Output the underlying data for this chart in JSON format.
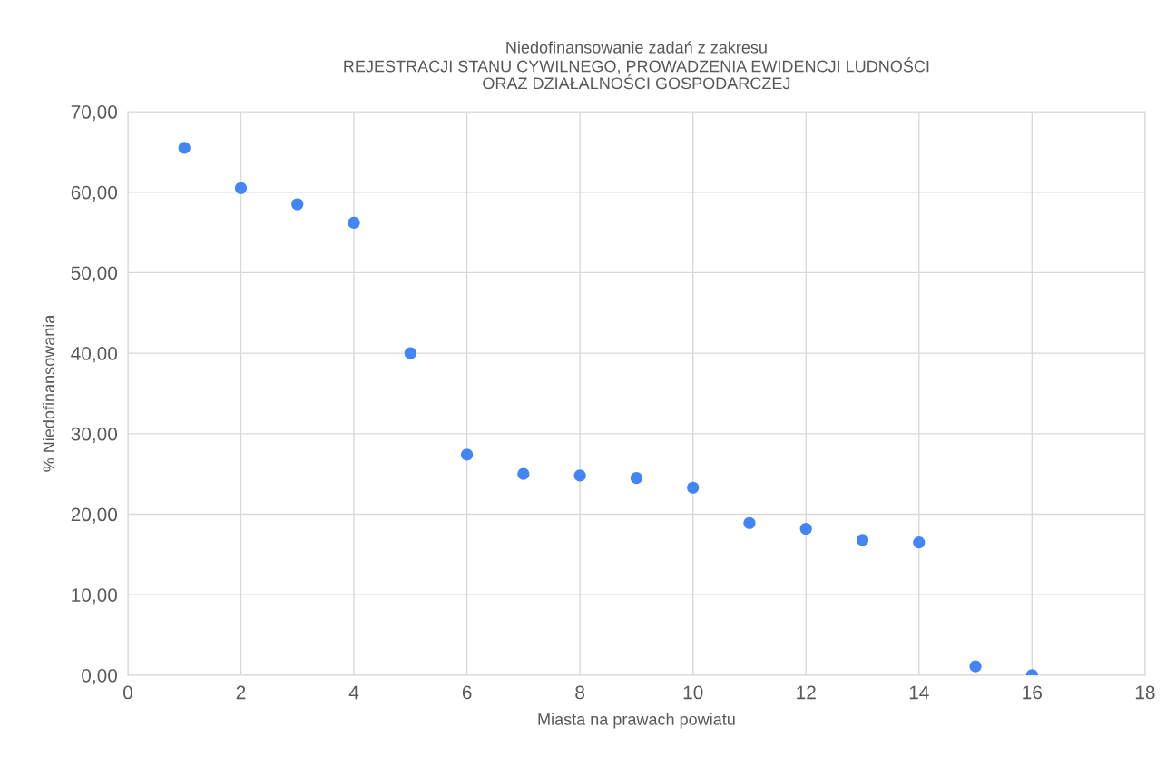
{
  "chart_data": {
    "type": "scatter",
    "title": "Niedofinansowanie zadań z zakresu\nREJESTRACJI STANU CYWILNEGO, PROWADZENIA EWIDENCJI LUDNOŚCI\nORAZ DZIAŁALNOŚCI GOSPODARCZEJ",
    "xlabel": "Miasta na prawach powiatu",
    "ylabel": "% Niedofinansowania",
    "x": [
      1,
      2,
      3,
      4,
      5,
      6,
      7,
      8,
      9,
      10,
      11,
      12,
      13,
      14,
      15,
      16
    ],
    "series": [
      {
        "color": "#4285f4",
        "values": [
          65.5,
          60.5,
          58.5,
          56.2,
          40.0,
          27.4,
          25.0,
          24.8,
          24.5,
          23.3,
          18.9,
          18.2,
          16.8,
          16.5,
          1.1,
          0.0
        ]
      }
    ],
    "xlim": [
      0,
      18
    ],
    "xticks": [
      0,
      2,
      4,
      6,
      8,
      10,
      12,
      14,
      16,
      18
    ],
    "ylim": [
      0,
      70
    ],
    "yticks": [
      {
        "value": 0,
        "label": "0,00"
      },
      {
        "value": 10,
        "label": "10,00"
      },
      {
        "value": 20,
        "label": "20,00"
      },
      {
        "value": 30,
        "label": "30,00"
      },
      {
        "value": 40,
        "label": "40,00"
      },
      {
        "value": 50,
        "label": "50,00"
      },
      {
        "value": 60,
        "label": "60,00"
      },
      {
        "value": 70,
        "label": "70,00"
      }
    ],
    "grid": true,
    "marker": "circle"
  }
}
